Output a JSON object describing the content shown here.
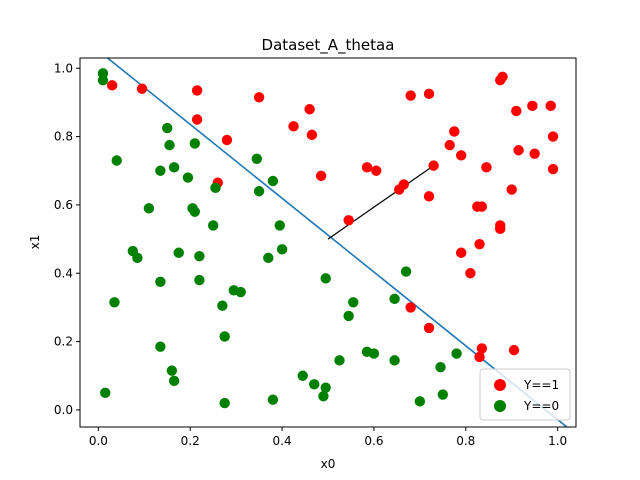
{
  "chart_data": {
    "type": "scatter",
    "title": "Dataset_A_thetaa",
    "xlabel": "x0",
    "ylabel": "x1",
    "xlim": [
      -0.04,
      1.04
    ],
    "ylim": [
      -0.05,
      1.03
    ],
    "xticks": [
      "0.0",
      "0.2",
      "0.4",
      "0.6",
      "0.8",
      "1.0"
    ],
    "yticks": [
      "0.0",
      "0.2",
      "0.4",
      "0.6",
      "0.8",
      "1.0"
    ],
    "grid": false,
    "legend_position": "bottom-right",
    "series": [
      {
        "name": "Y==1",
        "color": "#ff0000",
        "points": [
          [
            0.03,
            0.95
          ],
          [
            0.095,
            0.94
          ],
          [
            0.215,
            0.935
          ],
          [
            0.215,
            0.85
          ],
          [
            0.28,
            0.79
          ],
          [
            0.26,
            0.665
          ],
          [
            0.35,
            0.915
          ],
          [
            0.425,
            0.83
          ],
          [
            0.46,
            0.88
          ],
          [
            0.465,
            0.805
          ],
          [
            0.485,
            0.685
          ],
          [
            0.545,
            0.555
          ],
          [
            0.585,
            0.71
          ],
          [
            0.605,
            0.7
          ],
          [
            0.655,
            0.645
          ],
          [
            0.665,
            0.66
          ],
          [
            0.68,
            0.92
          ],
          [
            0.72,
            0.925
          ],
          [
            0.72,
            0.625
          ],
          [
            0.73,
            0.715
          ],
          [
            0.765,
            0.775
          ],
          [
            0.775,
            0.815
          ],
          [
            0.79,
            0.745
          ],
          [
            0.79,
            0.46
          ],
          [
            0.81,
            0.4
          ],
          [
            0.825,
            0.595
          ],
          [
            0.83,
            0.485
          ],
          [
            0.835,
            0.595
          ],
          [
            0.845,
            0.71
          ],
          [
            0.875,
            0.53
          ],
          [
            0.875,
            0.965
          ],
          [
            0.88,
            0.975
          ],
          [
            0.875,
            0.54
          ],
          [
            0.9,
            0.645
          ],
          [
            0.91,
            0.875
          ],
          [
            0.915,
            0.76
          ],
          [
            0.945,
            0.89
          ],
          [
            0.95,
            0.75
          ],
          [
            0.985,
            0.89
          ],
          [
            0.99,
            0.8
          ],
          [
            0.99,
            0.705
          ],
          [
            0.68,
            0.3
          ],
          [
            0.72,
            0.24
          ],
          [
            0.835,
            0.18
          ],
          [
            0.83,
            0.155
          ],
          [
            0.905,
            0.175
          ]
        ]
      },
      {
        "name": "Y==0",
        "color": "#008000",
        "points": [
          [
            0.01,
            0.985
          ],
          [
            0.01,
            0.965
          ],
          [
            0.04,
            0.73
          ],
          [
            0.015,
            0.05
          ],
          [
            0.035,
            0.315
          ],
          [
            0.075,
            0.465
          ],
          [
            0.085,
            0.445
          ],
          [
            0.11,
            0.59
          ],
          [
            0.135,
            0.7
          ],
          [
            0.135,
            0.375
          ],
          [
            0.135,
            0.185
          ],
          [
            0.15,
            0.825
          ],
          [
            0.155,
            0.775
          ],
          [
            0.16,
            0.115
          ],
          [
            0.165,
            0.71
          ],
          [
            0.165,
            0.085
          ],
          [
            0.175,
            0.46
          ],
          [
            0.195,
            0.68
          ],
          [
            0.205,
            0.59
          ],
          [
            0.21,
            0.78
          ],
          [
            0.21,
            0.58
          ],
          [
            0.22,
            0.45
          ],
          [
            0.22,
            0.38
          ],
          [
            0.25,
            0.54
          ],
          [
            0.255,
            0.65
          ],
          [
            0.27,
            0.305
          ],
          [
            0.275,
            0.215
          ],
          [
            0.275,
            0.02
          ],
          [
            0.295,
            0.35
          ],
          [
            0.31,
            0.345
          ],
          [
            0.345,
            0.735
          ],
          [
            0.35,
            0.64
          ],
          [
            0.37,
            0.445
          ],
          [
            0.38,
            0.67
          ],
          [
            0.38,
            0.03
          ],
          [
            0.395,
            0.54
          ],
          [
            0.4,
            0.47
          ],
          [
            0.445,
            0.1
          ],
          [
            0.47,
            0.075
          ],
          [
            0.49,
            0.04
          ],
          [
            0.495,
            0.065
          ],
          [
            0.495,
            0.385
          ],
          [
            0.525,
            0.145
          ],
          [
            0.545,
            0.275
          ],
          [
            0.555,
            0.315
          ],
          [
            0.585,
            0.17
          ],
          [
            0.6,
            0.165
          ],
          [
            0.645,
            0.325
          ],
          [
            0.645,
            0.145
          ],
          [
            0.67,
            0.405
          ],
          [
            0.7,
            0.025
          ],
          [
            0.745,
            0.125
          ],
          [
            0.75,
            0.045
          ],
          [
            0.78,
            0.165
          ]
        ]
      }
    ],
    "lines": [
      {
        "name": "decision-boundary",
        "color": "#1f77b4",
        "from": [
          0.02,
          1.03
        ],
        "to": [
          1.02,
          -0.05
        ]
      },
      {
        "name": "theta-vector",
        "color": "#000000",
        "from": [
          0.5,
          0.5
        ],
        "to": [
          0.73,
          0.715
        ]
      }
    ]
  }
}
